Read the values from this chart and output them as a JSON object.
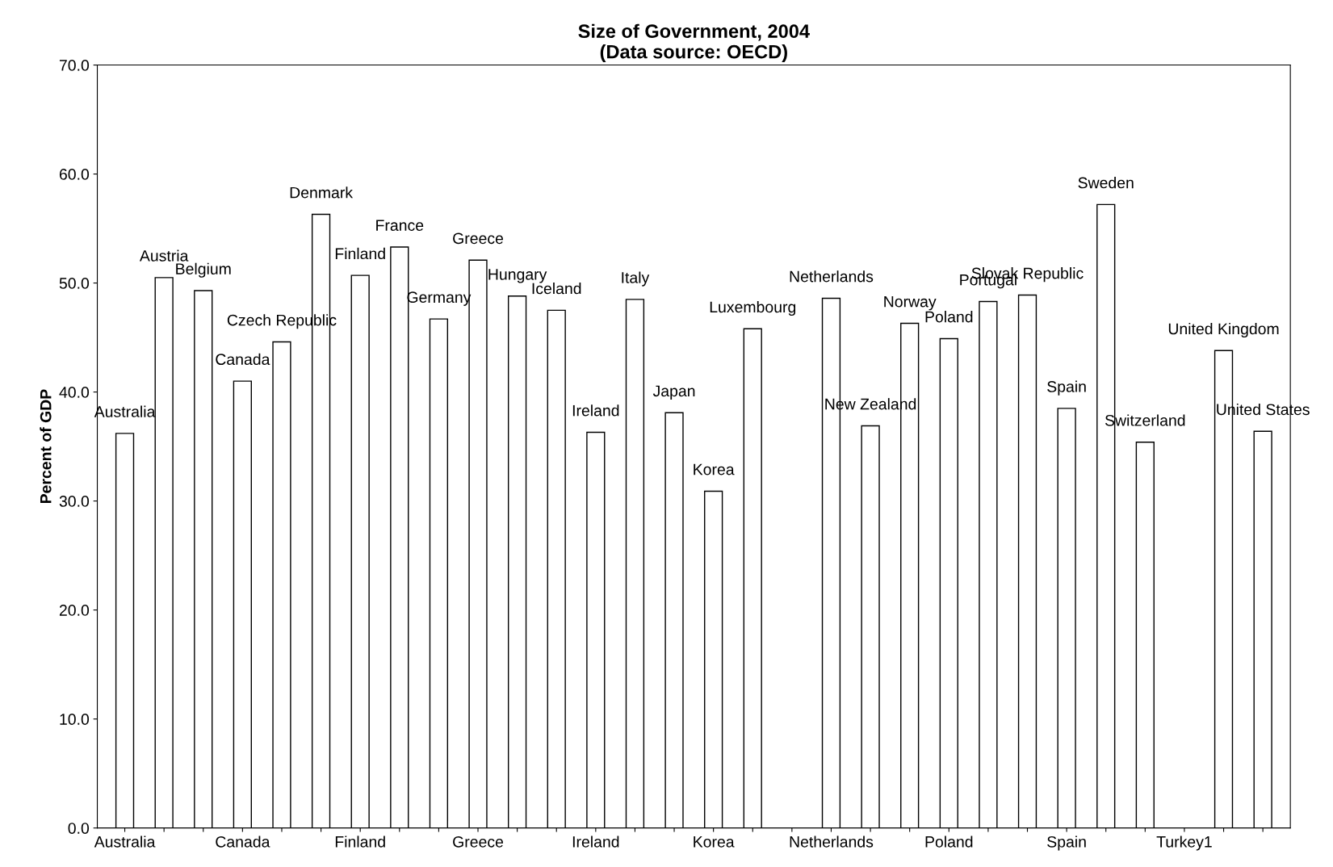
{
  "chart_data": {
    "type": "bar",
    "title": "Size of Government, 2004\n(Data source: OECD)",
    "ylabel": "Percent of GDP",
    "categories": [
      "Australia",
      null,
      null,
      "Canada",
      null,
      null,
      "Finland",
      null,
      null,
      "Greece",
      null,
      null,
      "Ireland",
      null,
      null,
      "Korea",
      null,
      null,
      "Netherlands",
      null,
      null,
      "Poland",
      null,
      null,
      "Spain",
      null,
      null,
      "Turkey1",
      null,
      null
    ],
    "values": [
      36.2,
      50.5,
      49.3,
      41.0,
      44.6,
      56.3,
      50.7,
      53.3,
      46.7,
      52.1,
      48.8,
      47.5,
      36.3,
      48.5,
      38.1,
      30.9,
      45.8,
      null,
      48.6,
      36.9,
      46.3,
      44.9,
      48.3,
      48.9,
      38.5,
      57.2,
      35.4,
      null,
      43.8,
      36.4
    ],
    "value_labels": [
      "Australia",
      "Austria",
      "Belgium",
      "Canada",
      "Czech Republic",
      "Denmark",
      "Finland",
      "France",
      "Germany",
      "Greece",
      "Hungary",
      "Iceland",
      "Ireland",
      "Italy",
      "Japan",
      "Korea",
      "Luxembourg",
      null,
      "Netherlands",
      "New Zealand",
      "Norway",
      "Poland",
      "Portugal",
      "Slovak Republic",
      "Spain",
      "Sweden",
      "Switzerland",
      null,
      "United Kingdom",
      "United States"
    ],
    "color": "#ffffff",
    "ylim": [
      0,
      70
    ],
    "yticks": [
      {
        "value": 0,
        "label": "0.0"
      },
      {
        "value": 10,
        "label": "10.0"
      },
      {
        "value": 20,
        "label": "20.0"
      },
      {
        "value": 30,
        "label": "30.0"
      },
      {
        "value": 40,
        "label": "40.0"
      },
      {
        "value": 50,
        "label": "50.0"
      },
      {
        "value": 60,
        "label": "60.0"
      },
      {
        "value": 70,
        "label": "70.0"
      }
    ],
    "grid": false,
    "legend": false
  }
}
